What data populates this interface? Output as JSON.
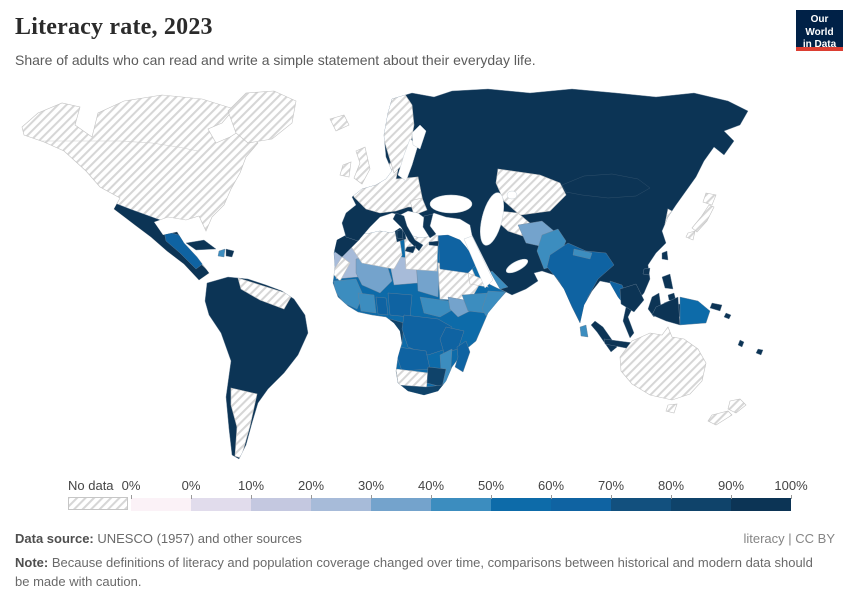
{
  "header": {
    "title": "Literacy rate, 2023",
    "subtitle": "Share of adults who can read and write a simple statement about their everyday life.",
    "logo_line1": "Our World",
    "logo_line2": "in Data",
    "logo_bg": "#002147",
    "logo_accent": "#dc3e32"
  },
  "legend": {
    "no_data_label": "No data",
    "tick_labels": [
      "0%",
      "0%",
      "10%",
      "20%",
      "30%",
      "40%",
      "50%",
      "60%",
      "70%",
      "80%",
      "90%",
      "100%"
    ]
  },
  "chart_data": {
    "type": "heatmap",
    "subtype": "choropleth_world_map",
    "metric": "Literacy rate",
    "year": "2023",
    "unit": "%",
    "legend_position": "bottom",
    "bins": [
      {
        "key": "nodata",
        "label": "No data",
        "color": "hatch"
      },
      {
        "key": "c1",
        "label": "0%",
        "color": "#fbf2f7"
      },
      {
        "key": "c2",
        "label": "0-10%",
        "color": "#e1dcec"
      },
      {
        "key": "c3",
        "label": "10-20%",
        "color": "#c4c8e0"
      },
      {
        "key": "c4",
        "label": "20-30%",
        "color": "#a7bbd9"
      },
      {
        "key": "c5",
        "label": "30-40%",
        "color": "#74a3cc"
      },
      {
        "key": "c6",
        "label": "40-50%",
        "color": "#3c8dbf"
      },
      {
        "key": "c7",
        "label": "50-60%",
        "color": "#0d6ba9"
      },
      {
        "key": "c8",
        "label": "60-70%",
        "color": "#0f63a2"
      },
      {
        "key": "c9",
        "label": "70-80%",
        "color": "#12507e"
      },
      {
        "key": "c10",
        "label": "80-90%",
        "color": "#0f436a"
      },
      {
        "key": "c11",
        "label": "90-100%",
        "color": "#0c3455"
      }
    ],
    "regions": {
      "north-america": "nodata",
      "greenland": "nodata",
      "iceland": "nodata",
      "united-kingdom": "nodata",
      "ireland": "nodata",
      "western-europe": "nodata",
      "balkans-west": "nodata",
      "norway-sweden": "nodata",
      "kazakhstan": "nodata",
      "turkmenistan": "nodata",
      "korea": "nodata",
      "japan-hokkaido": "nodata",
      "japan-honshu": "nodata",
      "japan-kyushu": "nodata",
      "algeria": "nodata",
      "libya": "nodata",
      "western-sahara": "nodata",
      "sudan": "nodata",
      "eritrea": "nodata",
      "namibia-botswana": "nodata",
      "venezuela-guyanas": "nodata",
      "argentina": "nodata",
      "australia": "nodata",
      "tasmania": "nodata",
      "new-zealand-north": "nodata",
      "new-zealand-south": "nodata",
      "eurasia": "c11",
      "italy": "c11",
      "greece": "c11",
      "sardinia": "c11",
      "sicily": "c11",
      "crete": "c11",
      "mexico-central-america": "c11",
      "cuba": "c11",
      "dominican-republic": "c11",
      "south-america": "c11",
      "morocco": "c11",
      "tunisia": "c11",
      "sumatra": "c11",
      "java": "c11",
      "borneo": "c11",
      "sulawesi": "c11",
      "moluccas": "c11",
      "timor": "c11",
      "new-guinea-west": "c11",
      "new-britain": "c11",
      "solomon-islands": "c11",
      "vanuatu": "c11",
      "fiji": "c11",
      "taiwan": "c11",
      "hainan": "c11",
      "philippines-luzon": "c11",
      "philippines-visayas": "c11",
      "philippines-mindanao": "c11",
      "gabon-congo": "c10",
      "zimbabwe": "c10",
      "south-africa": "c10",
      "egypt": "c8",
      "ghana": "c8",
      "nigeria": "c8",
      "drc": "c8",
      "tanzania": "c8",
      "angola": "c8",
      "madagascar": "c8",
      "india": "c8",
      "myanmar": "c8",
      "central-america-north": "c8",
      "africa": "c7",
      "papua-new-guinea-east": "c7",
      "west-africa-coastal": "c6",
      "cote-divoire": "c6",
      "central-african-republic": "c6",
      "somalia": "c6",
      "ethiopia": "c6",
      "mozambique": "c6",
      "yemen": "c6",
      "pakistan": "c6",
      "nepal": "c6",
      "sri-lanka": "c6",
      "cambodia": "c6",
      "haiti": "c6",
      "mali": "c5",
      "chad": "c5",
      "south-sudan": "c5",
      "afghanistan": "c5",
      "mauritania": "c4",
      "niger": "c4"
    }
  },
  "footer": {
    "source_label": "Data source:",
    "source_text": " UNESCO (1957) and other sources",
    "rights": "literacy | CC BY",
    "note_label": "Note:",
    "note_text": " Because definitions of literacy and population coverage changed over time, comparisons between historical and modern data should be made with caution."
  }
}
